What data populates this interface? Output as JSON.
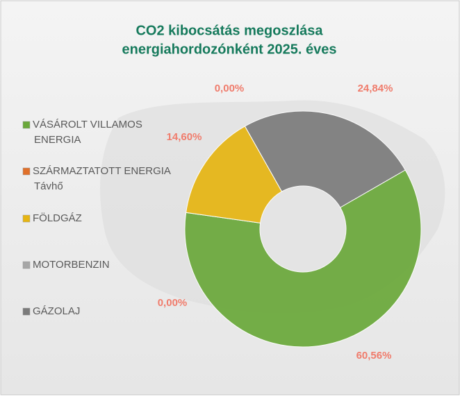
{
  "chart_data": {
    "type": "donut",
    "title": [
      "CO2 kibocsátás megoszlása",
      "energiahordozónként   2025. éves"
    ],
    "categories": [
      "VÁSÁROLT VILLAMOS ENERGIA",
      "SZÁRMAZTATOTT ENERGIA Távhő",
      "FÖLDGÁZ",
      "MOTORBENZIN",
      "GÁZOLAJ"
    ],
    "values": [
      60.56,
      0,
      14.6,
      0,
      24.84
    ],
    "value_labels": [
      "60,56%",
      "0,00%",
      "14,60%",
      "0,00%",
      "24,84%"
    ],
    "colors": [
      "#6aa83a",
      "#e0702a",
      "#e6b512",
      "#a6a6a6",
      "#7b7b7b"
    ],
    "legend": "left"
  }
}
